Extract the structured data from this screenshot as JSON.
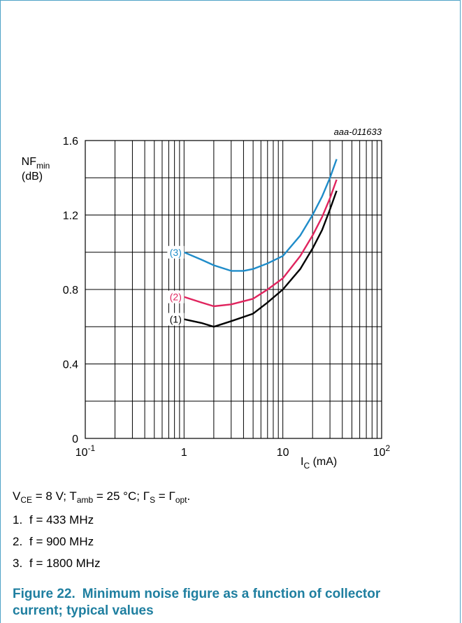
{
  "chart_data": {
    "type": "line",
    "x_scale": "log",
    "xlim": [
      0.1,
      100
    ],
    "ylim": [
      0,
      1.6
    ],
    "grid": true,
    "ylabel": "NFmin (dB)",
    "ylabel_main": "NF",
    "ylabel_sub": "min",
    "ylabel_unit": "(dB)",
    "xlabel": "IC (mA)",
    "xlabel_main": "I",
    "xlabel_sub": "C",
    "xlabel_unit": "(mA)",
    "code": "aaa-011633",
    "x_tick_labels": [
      {
        "value": 0.1,
        "base": "10",
        "exp": "-1"
      },
      {
        "value": 1,
        "base": "1",
        "exp": ""
      },
      {
        "value": 10,
        "base": "10",
        "exp": ""
      },
      {
        "value": 100,
        "base": "10",
        "exp": "2"
      }
    ],
    "y_ticks": [
      0,
      0.4,
      0.8,
      1.2,
      1.6
    ],
    "y_tick_labels": [
      "0",
      "0.4",
      "0.8",
      "1.2",
      "1.6"
    ],
    "series": [
      {
        "name": "(1)",
        "color": "#000000",
        "x": [
          1.0,
          1.5,
          2.0,
          3.0,
          5.0,
          7.0,
          10.0,
          15.0,
          20.0,
          25.0,
          30.0,
          35.0
        ],
        "y": [
          0.64,
          0.62,
          0.6,
          0.63,
          0.67,
          0.73,
          0.8,
          0.91,
          1.02,
          1.12,
          1.23,
          1.33
        ]
      },
      {
        "name": "(2)",
        "color": "#e0245e",
        "x": [
          1.0,
          1.5,
          2.0,
          3.0,
          5.0,
          7.0,
          10.0,
          15.0,
          20.0,
          25.0,
          30.0,
          35.0
        ],
        "y": [
          0.76,
          0.73,
          0.71,
          0.72,
          0.75,
          0.8,
          0.86,
          0.98,
          1.09,
          1.19,
          1.29,
          1.39
        ]
      },
      {
        "name": "(3)",
        "color": "#1f8cc9",
        "x": [
          1.0,
          1.5,
          2.0,
          3.0,
          4.0,
          5.0,
          7.0,
          10.0,
          15.0,
          20.0,
          25.0,
          30.0,
          35.0
        ],
        "y": [
          1.0,
          0.96,
          0.93,
          0.9,
          0.9,
          0.91,
          0.94,
          0.98,
          1.09,
          1.2,
          1.3,
          1.4,
          1.5
        ]
      }
    ]
  },
  "conditions": {
    "vce_main": "V",
    "vce_sub": "CE",
    "vce_val": " = 8 V; ",
    "tamb_main": "T",
    "tamb_sub": "amb",
    "tamb_val": " = 25 °C; ",
    "gs_main": "Γ",
    "gs_sub": "S",
    "eq": " = ",
    "gopt_main": "Γ",
    "gopt_sub": "opt",
    "end": "."
  },
  "notes": [
    {
      "num": "1.",
      "text": "f = 433 MHz"
    },
    {
      "num": "2.",
      "text": "f = 900 MHz"
    },
    {
      "num": "3.",
      "text": "f = 1800 MHz"
    }
  ],
  "figure": {
    "number": "Figure 22.",
    "title": "Minimum noise figure as a function of collector current; typical values"
  }
}
